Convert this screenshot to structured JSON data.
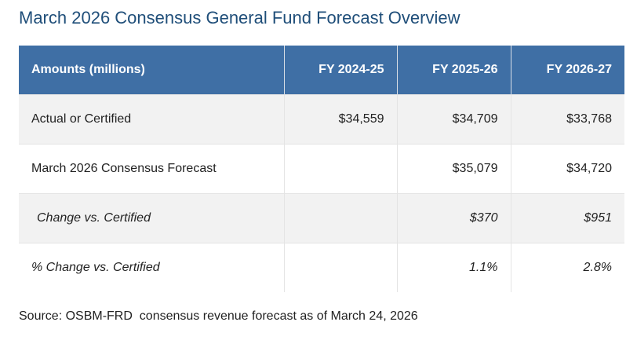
{
  "title": "March 2026 Consensus General Fund Forecast Overview",
  "table": {
    "headers": [
      "Amounts (millions)",
      "FY 2024-25",
      "FY 2025-26",
      "FY 2026-27"
    ],
    "rows": [
      {
        "label": "Actual or Certified",
        "values": [
          "$34,559",
          "$34,709",
          "$33,768"
        ]
      },
      {
        "label": "March 2026 Consensus Forecast",
        "values": [
          "",
          "$35,079",
          "$34,720"
        ]
      },
      {
        "label": "Change vs. Certified",
        "values": [
          "",
          "$370",
          "$951"
        ]
      },
      {
        "label": "% Change vs. Certified",
        "values": [
          "",
          "1.1%",
          "2.8%"
        ]
      }
    ]
  },
  "source": "Source: OSBM-FRD  consensus revenue forecast as of March 24, 2026",
  "colors": {
    "title": "#1f4e79",
    "header_bg": "#3f6fa5",
    "header_text": "#ffffff",
    "row_shade": "#f2f2f2"
  }
}
